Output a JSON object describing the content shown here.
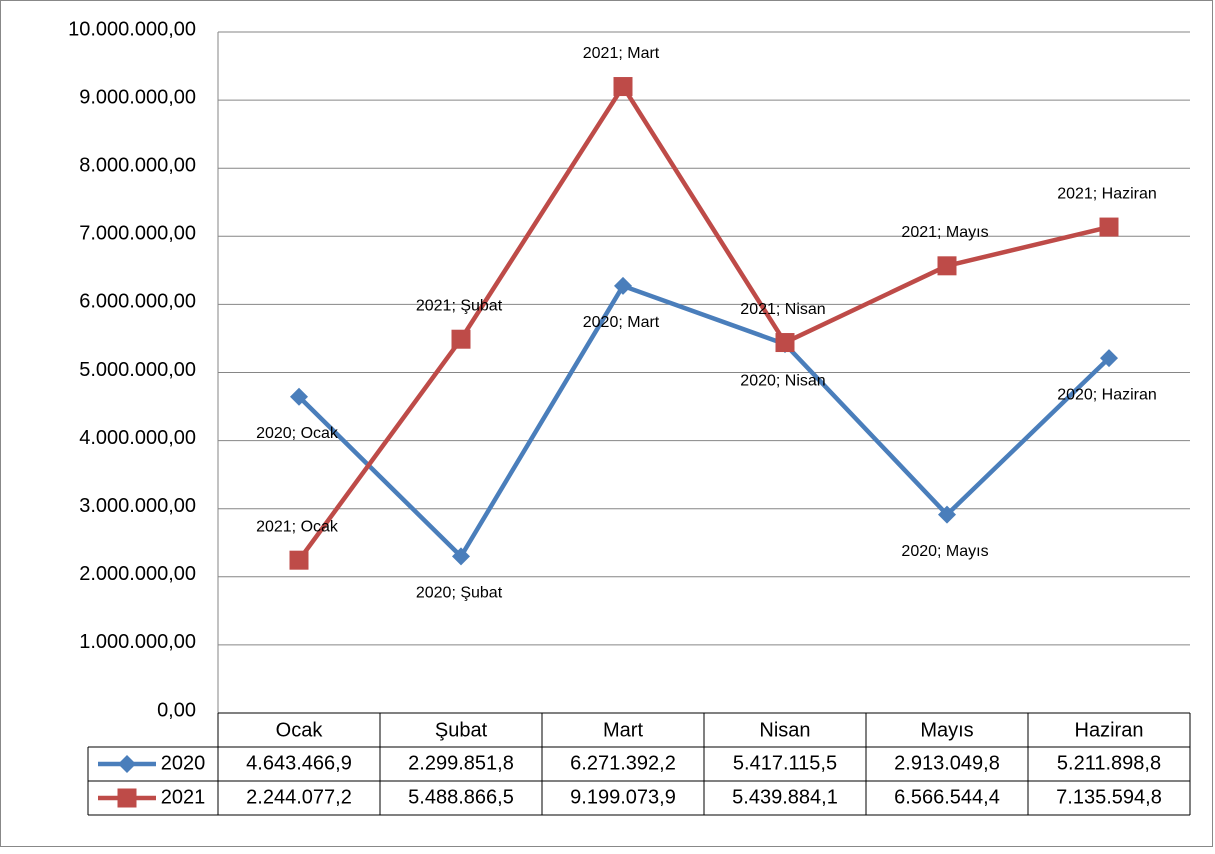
{
  "chart_data": {
    "type": "line",
    "categories": [
      "Ocak",
      "Şubat",
      "Mart",
      "Nisan",
      "Mayıs",
      "Haziran"
    ],
    "ylim": [
      0,
      10000000
    ],
    "yticks": [
      {
        "value": 0,
        "label": "0,00"
      },
      {
        "value": 1000000,
        "label": "1.000.000,00"
      },
      {
        "value": 2000000,
        "label": "2.000.000,00"
      },
      {
        "value": 3000000,
        "label": "3.000.000,00"
      },
      {
        "value": 4000000,
        "label": "4.000.000,00"
      },
      {
        "value": 5000000,
        "label": "5.000.000,00"
      },
      {
        "value": 6000000,
        "label": "6.000.000,00"
      },
      {
        "value": 7000000,
        "label": "7.000.000,00"
      },
      {
        "value": 8000000,
        "label": "8.000.000,00"
      },
      {
        "value": 9000000,
        "label": "9.000.000,00"
      },
      {
        "value": 10000000,
        "label": "10.000.000,00"
      }
    ],
    "grid": true,
    "series": [
      {
        "name": "2020",
        "color": "#4a7ebb",
        "marker": "diamond",
        "values": [
          4643466.9,
          2299851.8,
          6271392.2,
          5417115.5,
          2913049.8,
          5211898.8
        ],
        "value_labels": [
          "4.643.466,9",
          "2.299.851,8",
          "6.271.392,2",
          "5.417.115,5",
          "2.913.049,8",
          "5.211.898,8"
        ],
        "data_labels": [
          "2020; Ocak",
          "2020; Şubat",
          "2020; Mart",
          "2020; Nisan",
          "2020; Mayıs",
          "2020; Haziran"
        ]
      },
      {
        "name": "2021",
        "color": "#be4b48",
        "marker": "square",
        "values": [
          2244077.2,
          5488866.5,
          9199073.9,
          5439884.1,
          6566544.4,
          7135594.8
        ],
        "value_labels": [
          "2.244.077,2",
          "5.488.866,5",
          "9.199.073,9",
          "5.439.884,1",
          "6.566.544,4",
          "7.135.594,8"
        ],
        "data_labels": [
          "2021; Ocak",
          "2021; Şubat",
          "2021; Mart",
          "2021; Nisan",
          "2021; Mayıs",
          "2021; Haziran"
        ]
      }
    ]
  }
}
